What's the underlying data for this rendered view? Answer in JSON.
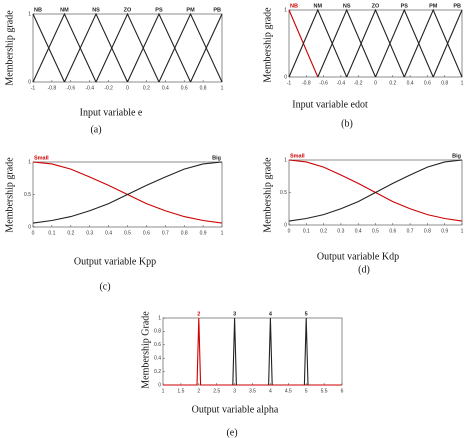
{
  "chart_data": [
    {
      "type": "line",
      "y_label": "Membership grade",
      "x_label": "Input variable e",
      "caption": "(a)",
      "xlim": [
        -1,
        1
      ],
      "xticks": [
        -1,
        -0.8,
        -0.6,
        -0.4,
        -0.2,
        0,
        0.2,
        0.4,
        0.6,
        0.8,
        1
      ],
      "ylim": [
        0,
        1
      ],
      "yticks": [
        0,
        1
      ],
      "series": [
        {
          "name": "NB",
          "color": "#222222",
          "x": [
            -1,
            -0.667
          ],
          "values": [
            1,
            0
          ]
        },
        {
          "name": "NM",
          "color": "#222222",
          "x": [
            -1,
            -0.667,
            -0.333
          ],
          "values": [
            0,
            1,
            0
          ]
        },
        {
          "name": "NS",
          "color": "#222222",
          "x": [
            -0.667,
            -0.333,
            0
          ],
          "values": [
            0,
            1,
            0
          ]
        },
        {
          "name": "ZO",
          "color": "#222222",
          "x": [
            -0.333,
            0,
            0.333
          ],
          "values": [
            0,
            1,
            0
          ]
        },
        {
          "name": "PS",
          "color": "#222222",
          "x": [
            0,
            0.333,
            0.667
          ],
          "values": [
            0,
            1,
            0
          ]
        },
        {
          "name": "PM",
          "color": "#222222",
          "x": [
            0.333,
            0.667,
            1
          ],
          "values": [
            0,
            1,
            0
          ]
        },
        {
          "name": "PB",
          "color": "#222222",
          "x": [
            0.667,
            1
          ],
          "values": [
            0,
            1
          ]
        }
      ]
    },
    {
      "type": "line",
      "y_label": "Membership grade",
      "x_label": "Input variable edot",
      "caption": "(b)",
      "xlim": [
        -1,
        1
      ],
      "xticks": [
        -1,
        -0.8,
        -0.6,
        -0.4,
        -0.2,
        0,
        0.2,
        0.4,
        0.6,
        0.8,
        1
      ],
      "ylim": [
        0,
        1
      ],
      "yticks": [
        0,
        1
      ],
      "series": [
        {
          "name": "NB",
          "color": "#cc0000",
          "x": [
            -1,
            -0.667
          ],
          "values": [
            1,
            0
          ]
        },
        {
          "name": "NM",
          "color": "#222222",
          "x": [
            -1,
            -0.667,
            -0.333
          ],
          "values": [
            0,
            1,
            0
          ]
        },
        {
          "name": "NS",
          "color": "#222222",
          "x": [
            -0.667,
            -0.333,
            0
          ],
          "values": [
            0,
            1,
            0
          ]
        },
        {
          "name": "ZO",
          "color": "#222222",
          "x": [
            -0.333,
            0,
            0.333
          ],
          "values": [
            0,
            1,
            0
          ]
        },
        {
          "name": "PS",
          "color": "#222222",
          "x": [
            0,
            0.333,
            0.667
          ],
          "values": [
            0,
            1,
            0
          ]
        },
        {
          "name": "PM",
          "color": "#222222",
          "x": [
            0.333,
            0.667,
            1
          ],
          "values": [
            0,
            1,
            0
          ]
        },
        {
          "name": "PB",
          "color": "#222222",
          "x": [
            0.667,
            1
          ],
          "values": [
            0,
            1
          ]
        }
      ]
    },
    {
      "type": "line",
      "y_label": "Membership grade",
      "x_label": "Output variable Kpp",
      "caption": "(c)",
      "xlim": [
        0,
        1
      ],
      "xticks": [
        0,
        0.1,
        0.2,
        0.3,
        0.4,
        0.5,
        0.6,
        0.7,
        0.8,
        0.9,
        1
      ],
      "ylim": [
        0,
        1
      ],
      "yticks": [
        0,
        0.5,
        1
      ],
      "series": [
        {
          "name": "Small",
          "color": "#cc0000",
          "x": [
            0,
            0.1,
            0.2,
            0.3,
            0.4,
            0.5,
            0.6,
            0.7,
            0.8,
            0.9,
            1
          ],
          "values": [
            1,
            0.97,
            0.89,
            0.77,
            0.64,
            0.5,
            0.36,
            0.25,
            0.16,
            0.1,
            0.06
          ]
        },
        {
          "name": "Big",
          "color": "#222222",
          "x": [
            0,
            0.1,
            0.2,
            0.3,
            0.4,
            0.5,
            0.6,
            0.7,
            0.8,
            0.9,
            1
          ],
          "values": [
            0.06,
            0.1,
            0.16,
            0.25,
            0.36,
            0.5,
            0.64,
            0.77,
            0.89,
            0.97,
            1
          ]
        }
      ]
    },
    {
      "type": "line",
      "y_label": "Membership grade",
      "x_label": "Output variable Kdp",
      "caption": "(d)",
      "xlim": [
        0,
        1
      ],
      "xticks": [
        0,
        0.1,
        0.2,
        0.3,
        0.4,
        0.5,
        0.6,
        0.7,
        0.8,
        0.9,
        1
      ],
      "ylim": [
        0,
        1
      ],
      "yticks": [
        0,
        0.5,
        1
      ],
      "series": [
        {
          "name": "Small",
          "color": "#cc0000",
          "x": [
            0,
            0.1,
            0.2,
            0.3,
            0.4,
            0.5,
            0.6,
            0.7,
            0.8,
            0.9,
            1
          ],
          "values": [
            1,
            0.97,
            0.89,
            0.77,
            0.64,
            0.5,
            0.36,
            0.25,
            0.16,
            0.1,
            0.06
          ]
        },
        {
          "name": "Big",
          "color": "#222222",
          "x": [
            0,
            0.1,
            0.2,
            0.3,
            0.4,
            0.5,
            0.6,
            0.7,
            0.8,
            0.9,
            1
          ],
          "values": [
            0.06,
            0.1,
            0.16,
            0.25,
            0.36,
            0.5,
            0.64,
            0.77,
            0.89,
            0.97,
            1
          ]
        }
      ]
    },
    {
      "type": "line",
      "y_label": "Membership Grade",
      "x_label": "Output variable alpha",
      "caption": "(e)",
      "xlim": [
        1,
        6
      ],
      "xticks": [
        1,
        1.5,
        2,
        2.5,
        3,
        3.5,
        4,
        4.5,
        5,
        5.5,
        6
      ],
      "ylim": [
        0,
        1
      ],
      "yticks": [
        0,
        0.2,
        0.4,
        0.6,
        0.8,
        1
      ],
      "series": [
        {
          "name": "2",
          "color": "#cc0000",
          "x": [
            1,
            1.95,
            2,
            2.05,
            6
          ],
          "values": [
            0,
            0,
            1,
            0,
            0
          ]
        },
        {
          "name": "3",
          "color": "#222222",
          "x": [
            2.95,
            3,
            3.05
          ],
          "values": [
            0,
            1,
            0
          ]
        },
        {
          "name": "4",
          "color": "#222222",
          "x": [
            3.95,
            4,
            4.05
          ],
          "values": [
            0,
            1,
            0
          ]
        },
        {
          "name": "5",
          "color": "#222222",
          "x": [
            4.95,
            5,
            5.05
          ],
          "values": [
            0,
            1,
            0
          ]
        }
      ]
    }
  ]
}
